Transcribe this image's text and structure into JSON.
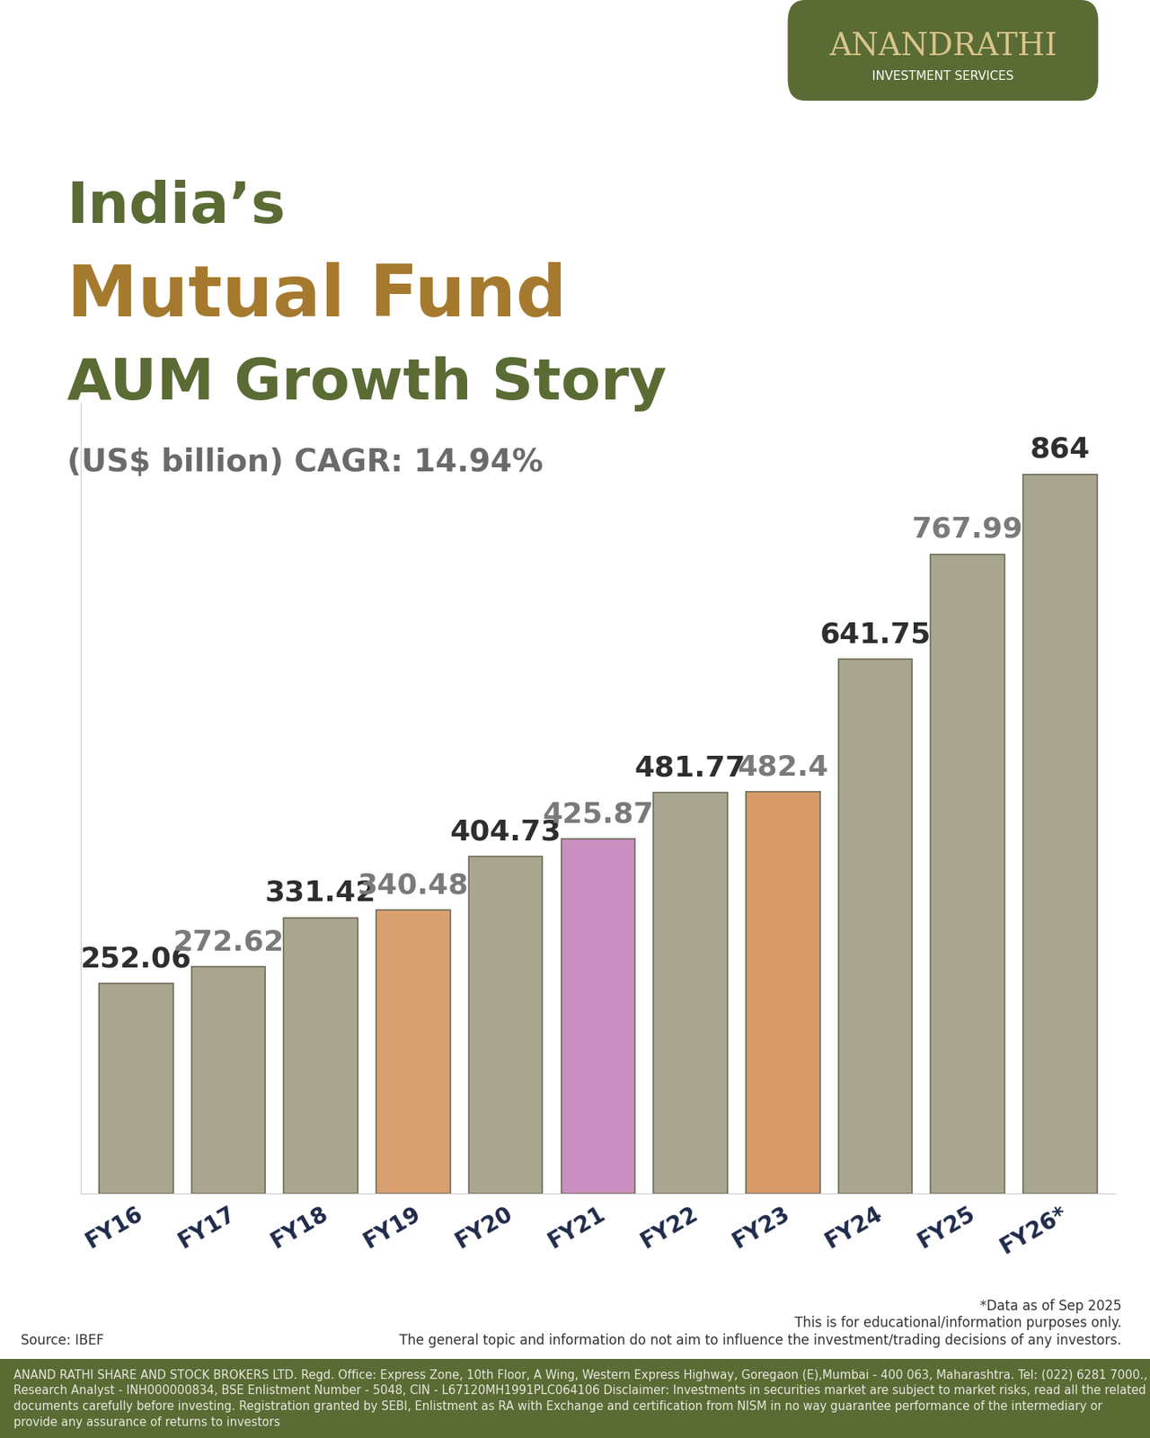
{
  "chart_data": {
    "type": "bar",
    "title": [
      "India’s",
      "Mutual Fund",
      "AUM Growth Story"
    ],
    "subtitle": "(US$ billion) CAGR: 14.94%",
    "brand": {
      "name": "ANANDRATHI",
      "tagline": "INVESTMENT SERVICES"
    },
    "categories": [
      "FY16",
      "FY17",
      "FY18",
      "FY19",
      "FY20",
      "FY21",
      "FY22",
      "FY23",
      "FY24",
      "FY25",
      "FY26*"
    ],
    "values": [
      252.06,
      272.62,
      331.42,
      340.48,
      404.73,
      425.87,
      481.77,
      482.4,
      641.75,
      767.99,
      864
    ],
    "value_labels": [
      "252.06",
      "272.62",
      "331.42",
      "340.48",
      "404.73",
      "425.87",
      "481.77",
      "482.4",
      "641.75",
      "767.99",
      "864"
    ],
    "colors": [
      "#a9a68f",
      "#a9a68f",
      "#a9a68f",
      "#d9a070",
      "#a9a68f",
      "#c98fc0",
      "#a9a68f",
      "#d99a6a",
      "#a9a68f",
      "#a9a68f",
      "#a9a68f"
    ],
    "ylim": [
      0,
      950
    ],
    "yticks": [],
    "grid": false,
    "data_labels": true,
    "tick_labels": "x",
    "source": "Source: IBEF",
    "notes": [
      "*Data as of Sep 2025",
      "This is for educational/information purposes only.",
      "The general topic and information do not aim to influence the investment/trading decisions of any investors."
    ],
    "footer": "ANAND RATHI SHARE AND STOCK BROKERS LTD. Regd. Office: Express Zone, 10th Floor, A Wing, Western Express Highway, Goregaon (E),Mumbai - 400 063, Maharashtra. Tel: (022) 6281 7000., Research Analyst - INH000000834, BSE Enlistment Number - 5048, CIN - L67120MH1991PLC064106 Disclaimer: Investments in securities market are subject to market risks, read all the related documents carefully before investing. Registration granted by SEBI, Enlistment as RA with Exchange and certification from NISM in no way guarantee performance of the intermediary or provide any assurance of returns to investors"
  }
}
